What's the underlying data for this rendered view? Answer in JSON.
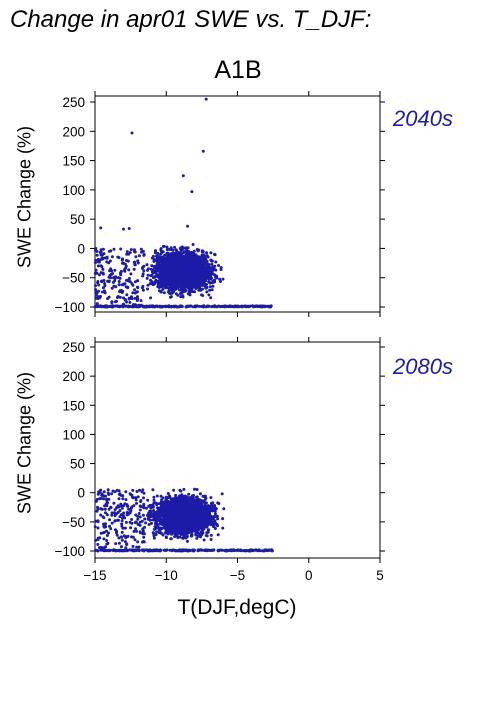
{
  "title": "Change in apr01 SWE vs. T_DJF:",
  "scenario": "A1B",
  "colors": {
    "points": "#1c1ca8",
    "period_label": "#1c1ca8",
    "axes": "#000000"
  },
  "chart_data": [
    {
      "type": "scatter",
      "period": "2040s",
      "ylabel": "SWE Change (%)",
      "xlabel": "",
      "xlim": [
        -15,
        5
      ],
      "ylim": [
        -105,
        255
      ],
      "xticks": [
        -15,
        -10,
        -5,
        0,
        5
      ],
      "yticks": [
        -100,
        -50,
        0,
        50,
        100,
        150,
        200,
        250
      ],
      "cluster": {
        "x_range": [
          -15,
          -2.5
        ],
        "y_range": [
          -100,
          12
        ],
        "dense_x_range": [
          -12,
          -5
        ]
      },
      "outliers": [
        {
          "x": -7.2,
          "y": 255
        },
        {
          "x": -12.4,
          "y": 197
        },
        {
          "x": -7.4,
          "y": 166
        },
        {
          "x": -8.8,
          "y": 124
        },
        {
          "x": -8.2,
          "y": 97
        },
        {
          "x": -8.5,
          "y": 38
        },
        {
          "x": -14.6,
          "y": 35
        },
        {
          "x": -13.0,
          "y": 33
        },
        {
          "x": -12.6,
          "y": 34
        }
      ]
    },
    {
      "type": "scatter",
      "period": "2080s",
      "ylabel": "SWE Change (%)",
      "xlabel": "T(DJF,degC)",
      "xlim": [
        -15,
        5
      ],
      "ylim": [
        -105,
        260
      ],
      "xticks": [
        -15,
        -10,
        -5,
        0,
        5
      ],
      "yticks": [
        -100,
        -50,
        0,
        50,
        100,
        150,
        200,
        250
      ],
      "cluster": {
        "x_range": [
          -15,
          -2.5
        ],
        "y_range": [
          -100,
          22
        ],
        "dense_x_range": [
          -12,
          -5.5
        ]
      },
      "outliers": []
    }
  ]
}
